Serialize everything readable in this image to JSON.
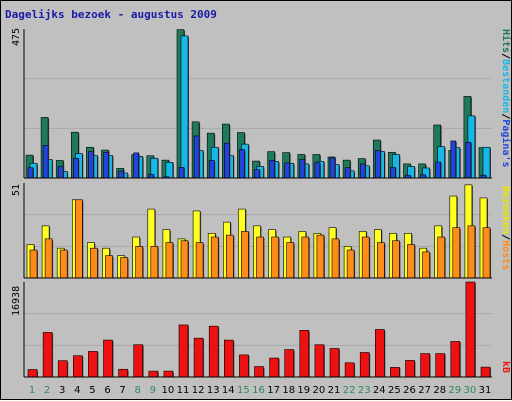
{
  "title": "Dagelijks bezoek - augustus 2009",
  "colors": {
    "background": "#c0c0c0",
    "plot": "#c0c0c0",
    "grid": "#a8a8a8",
    "hits": "#1e7a5a",
    "bestanden": "#16b8e8",
    "paginas": "#2244dd",
    "bezoeken": "#ffff22",
    "hosts": "#ff8c1a",
    "kb": "#ee1111",
    "weekday": "#000000",
    "weekend": "#2e8b57",
    "title": "#1a1aa8"
  },
  "legends": {
    "top": [
      "Hits",
      "Bestanden",
      "Pagina's"
    ],
    "middle": [
      "Bezoeken",
      "Hosts"
    ],
    "bottom": [
      "kB"
    ],
    "separator": "/"
  },
  "chart_data": [
    {
      "type": "bar",
      "x": [
        1,
        2,
        3,
        4,
        5,
        6,
        7,
        8,
        9,
        10,
        11,
        12,
        13,
        14,
        15,
        16,
        17,
        18,
        19,
        20,
        21,
        22,
        23,
        24,
        25,
        26,
        27,
        28,
        29,
        30,
        31
      ],
      "weekend_days": [
        1,
        2,
        8,
        9,
        15,
        16,
        22,
        23,
        29,
        30
      ],
      "ymax_label": "475",
      "ylim": [
        0,
        475
      ],
      "series": [
        {
          "name": "Hits",
          "values": [
            73,
            193,
            56,
            146,
            98,
            89,
            31,
            74,
            71,
            57,
            473,
            179,
            143,
            172,
            145,
            54,
            84,
            81,
            75,
            75,
            67,
            57,
            62,
            121,
            82,
            45,
            45,
            169,
            88,
            260,
            97
          ]
        },
        {
          "name": "Bestanden",
          "values": [
            47,
            59,
            21,
            78,
            72,
            72,
            16,
            69,
            63,
            50,
            453,
            88,
            98,
            72,
            108,
            37,
            53,
            47,
            45,
            53,
            43,
            23,
            39,
            85,
            75,
            37,
            32,
            100,
            97,
            198,
            98
          ]
        },
        {
          "name": "Pagina's",
          "values": [
            33,
            104,
            37,
            63,
            84,
            82,
            22,
            80,
            11,
            4,
            34,
            134,
            56,
            111,
            91,
            27,
            56,
            48,
            59,
            49,
            64,
            33,
            45,
            88,
            34,
            9,
            10,
            51,
            118,
            114,
            9
          ]
        }
      ]
    },
    {
      "type": "bar",
      "x": [
        1,
        2,
        3,
        4,
        5,
        6,
        7,
        8,
        9,
        10,
        11,
        12,
        13,
        14,
        15,
        16,
        17,
        18,
        19,
        20,
        21,
        22,
        23,
        24,
        25,
        26,
        27,
        28,
        29,
        30,
        31
      ],
      "ymax_label": "51",
      "ylim": [
        0,
        51
      ],
      "series": [
        {
          "name": "Bezoeken",
          "values": [
            18,
            28,
            16,
            42,
            19,
            16,
            12,
            22,
            37,
            26,
            21,
            36,
            24,
            30,
            37,
            28,
            26,
            22,
            25,
            24,
            27,
            17,
            25,
            26,
            24,
            24,
            16,
            28,
            44,
            50,
            43
          ]
        },
        {
          "name": "Hosts",
          "values": [
            15,
            21,
            15,
            42,
            16,
            12,
            11,
            17,
            17,
            19,
            20,
            19,
            22,
            23,
            25,
            22,
            22,
            19,
            22,
            23,
            21,
            15,
            22,
            19,
            20,
            18,
            14,
            22,
            27,
            28,
            27
          ]
        }
      ]
    },
    {
      "type": "bar",
      "x": [
        1,
        2,
        3,
        4,
        5,
        6,
        7,
        8,
        9,
        10,
        11,
        12,
        13,
        14,
        15,
        16,
        17,
        18,
        19,
        20,
        21,
        22,
        23,
        24,
        25,
        26,
        27,
        28,
        29,
        30,
        31
      ],
      "ymax_label": "16938",
      "ylim": [
        0,
        16938
      ],
      "series": [
        {
          "name": "kB",
          "values": [
            1336,
            7944,
            2914,
            3797,
            4562,
            6580,
            1381,
            5755,
            1051,
            1051,
            9286,
            6923,
            9063,
            6580,
            3940,
            1862,
            3384,
            4896,
            8325,
            5755,
            5086,
            2532,
            4370,
            8468,
            1719,
            2961,
            4179,
            4179,
            6341,
            16938,
            1767
          ]
        }
      ]
    }
  ]
}
